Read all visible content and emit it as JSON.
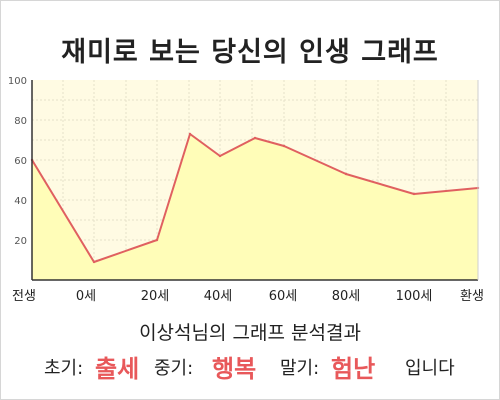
{
  "title": "재미로 보는 당신의 인생 그래프",
  "chart_data": {
    "type": "area",
    "x_tick_labels": [
      "전생",
      "0세",
      "20세",
      "40세",
      "60세",
      "80세",
      "100세",
      "환생"
    ],
    "y_ticks": [
      20,
      40,
      60,
      80,
      100
    ],
    "ylim": [
      0,
      100
    ],
    "series": [
      {
        "x": [
          "전생",
          "0세",
          "20세",
          "30세",
          "40세",
          "50세",
          "60세",
          "80세",
          "100세",
          "환생"
        ],
        "values": [
          60,
          9,
          20,
          73,
          62,
          71,
          67,
          53,
          43,
          46
        ]
      }
    ],
    "colors": {
      "line": "#e06060",
      "fill": "#fffdb8",
      "plot_bg": "#fffbe3",
      "grid": "#e6e0c8"
    },
    "grid": true
  },
  "result": {
    "heading": "이상석님의 그래프 분석결과",
    "early_label": "초기:",
    "early_value": "출세",
    "middle_label": "중기:",
    "middle_value": "행복",
    "late_label": "말기:",
    "late_value": "험난",
    "suffix": "입니다"
  }
}
